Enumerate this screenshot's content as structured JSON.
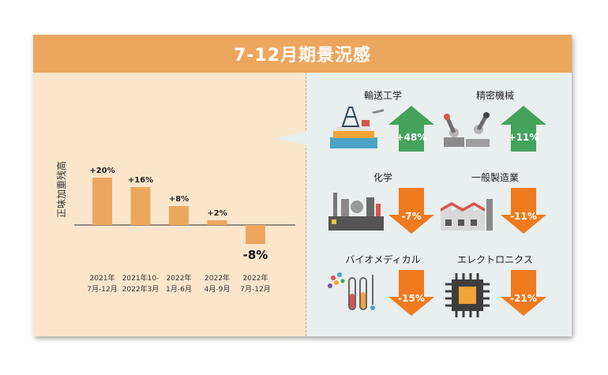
{
  "title": "7-12月期景況感",
  "colors": {
    "header": "#eda65e",
    "bar": "#eda65e",
    "up_arrow": "#44a35a",
    "down_arrow": "#f07a1e",
    "left_bg": "#fbe6cc",
    "right_bg": "#e9eeee"
  },
  "chart_data": {
    "type": "bar",
    "ylabel": "正味加重残高",
    "categories": [
      [
        "2021年",
        "7月-12月"
      ],
      [
        "2021年10-",
        "2022年3月"
      ],
      [
        "2022年",
        "1月-6月"
      ],
      [
        "2022年",
        "4月-9月"
      ],
      [
        "2022年",
        "7月-12月"
      ]
    ],
    "values": [
      20,
      16,
      8,
      2,
      -8
    ],
    "value_labels": [
      "+20%",
      "+16%",
      "+8%",
      "+2%",
      "-8%"
    ],
    "ylim": [
      -10,
      25
    ],
    "grid": false
  },
  "sectors": [
    {
      "name": "輸送工学",
      "change": "+48%",
      "direction": "up",
      "icon": "oil-rig-icon"
    },
    {
      "name": "精密機械",
      "change": "+11%",
      "direction": "up",
      "icon": "robot-arm-icon"
    },
    {
      "name": "化学",
      "change": "-7%",
      "direction": "down",
      "icon": "chemical-plant-icon"
    },
    {
      "name": "一般製造業",
      "change": "-11%",
      "direction": "down",
      "icon": "factory-icon"
    },
    {
      "name": "バイオメディカル",
      "change": "-15%",
      "direction": "down",
      "icon": "lab-equipment-icon"
    },
    {
      "name": "エレクトロニクス",
      "change": "-21%",
      "direction": "down",
      "icon": "microchip-icon"
    }
  ]
}
